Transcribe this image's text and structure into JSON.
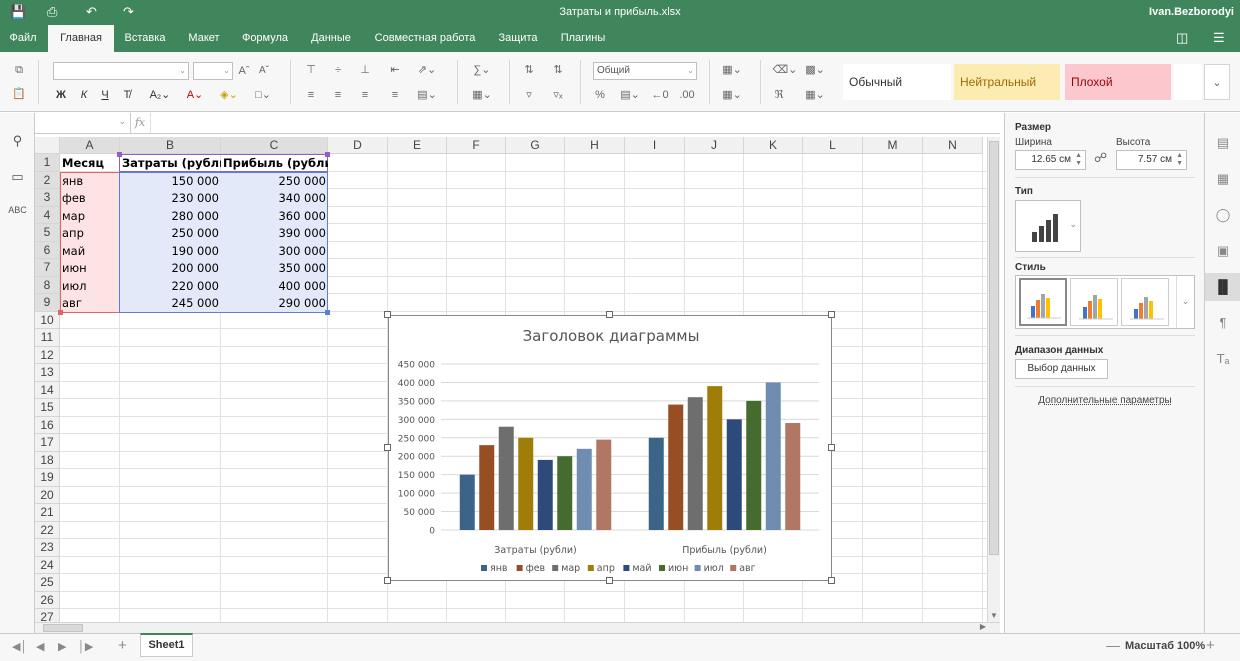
{
  "app": {
    "doc_title": "Затраты и прибыль.xlsx",
    "user": "Ivan.Bezborodyi"
  },
  "menu": {
    "tabs": [
      "Файл",
      "Главная",
      "Вставка",
      "Макет",
      "Формула",
      "Данные",
      "Совместная работа",
      "Защита",
      "Плагины"
    ],
    "active": "Главная"
  },
  "toolbar": {
    "number_format": "Общий",
    "styles": [
      "Обычный",
      "Нейтральный",
      "Плохой"
    ]
  },
  "grid": {
    "columns": [
      "A",
      "B",
      "C",
      "D",
      "E",
      "F",
      "G",
      "H",
      "I",
      "J",
      "K",
      "L",
      "M",
      "N"
    ],
    "row_numbers": [
      "1",
      "2",
      "3",
      "4",
      "5",
      "6",
      "7",
      "8",
      "9",
      "10",
      "11",
      "12",
      "13",
      "14",
      "15",
      "16",
      "17",
      "18",
      "19",
      "20",
      "21",
      "22",
      "23",
      "24",
      "25",
      "26",
      "27"
    ],
    "header": [
      "Месяц",
      "Затраты (рубли)",
      "Прибыль (рубли)"
    ],
    "rows": [
      [
        "янв",
        "150 000",
        "250 000"
      ],
      [
        "фев",
        "230 000",
        "340 000"
      ],
      [
        "мар",
        "280 000",
        "360 000"
      ],
      [
        "апр",
        "250 000",
        "390 000"
      ],
      [
        "май",
        "190 000",
        "300 000"
      ],
      [
        "июн",
        "200 000",
        "350 000"
      ],
      [
        "июл",
        "220 000",
        "400 000"
      ],
      [
        "авг",
        "245 000",
        "290 000"
      ]
    ]
  },
  "chart_data": {
    "type": "bar",
    "title": "Заголовок диаграммы",
    "categories": [
      "Затраты (рубли)",
      "Прибыль (рубли)"
    ],
    "series": [
      {
        "name": "янв",
        "values": [
          150000,
          250000
        ],
        "color": "#3c6489"
      },
      {
        "name": "фев",
        "values": [
          230000,
          340000
        ],
        "color": "#974e22"
      },
      {
        "name": "мар",
        "values": [
          280000,
          360000
        ],
        "color": "#6e6e6e"
      },
      {
        "name": "апр",
        "values": [
          250000,
          390000
        ],
        "color": "#a07d07"
      },
      {
        "name": "май",
        "values": [
          190000,
          300000
        ],
        "color": "#2e4a7a"
      },
      {
        "name": "июн",
        "values": [
          200000,
          350000
        ],
        "color": "#456b2f"
      },
      {
        "name": "июл",
        "values": [
          220000,
          400000
        ],
        "color": "#6f8db0"
      },
      {
        "name": "авг",
        "values": [
          245000,
          290000
        ],
        "color": "#b27665"
      }
    ],
    "ylim": [
      0,
      450000
    ],
    "ytick_labels": [
      "0",
      "50 000",
      "100 000",
      "150 000",
      "200 000",
      "250 000",
      "300 000",
      "350 000",
      "400 000",
      "450 000"
    ],
    "grid": true,
    "legend": "bottom"
  },
  "panel": {
    "size_label": "Размер",
    "width_label": "Ширина",
    "height_label": "Высота",
    "width_value": "12.65 см",
    "height_value": "7.57 см",
    "type_label": "Тип",
    "style_label": "Стиль",
    "range_label": "Диапазон данных",
    "select_data_button": "Выбор данных",
    "advanced_link": "Дополнительные параметры"
  },
  "status": {
    "sheet_tab": "Sheet1",
    "zoom_label": "Масштаб 100%"
  }
}
